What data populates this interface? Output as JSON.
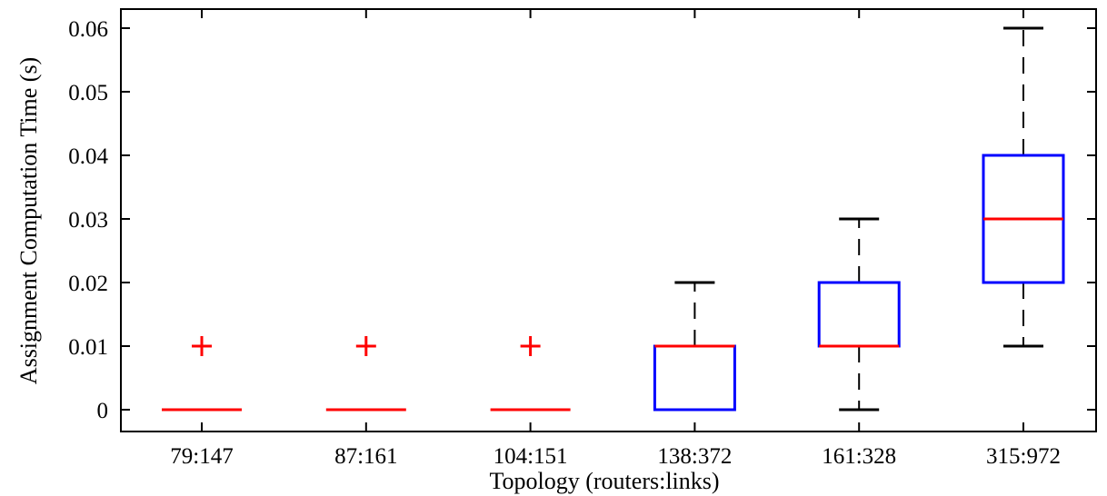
{
  "chart_data": {
    "type": "box",
    "xlabel": "Topology (routers:links)",
    "ylabel": "Assignment Computation Time (s)",
    "ylim": [
      0,
      0.06
    ],
    "yticks": [
      0,
      0.01,
      0.02,
      0.03,
      0.04,
      0.05,
      0.06
    ],
    "ytick_labels": [
      "0",
      "0.01",
      "0.02",
      "0.03",
      "0.04",
      "0.05",
      "0.06"
    ],
    "categories": [
      "79:147",
      "87:161",
      "104:151",
      "138:372",
      "161:328",
      "315:972"
    ],
    "boxes": [
      {
        "category": "79:147",
        "min": 0,
        "q1": 0,
        "median": 0,
        "q3": 0,
        "max": 0,
        "outliers": [
          0.01
        ]
      },
      {
        "category": "87:161",
        "min": 0,
        "q1": 0,
        "median": 0,
        "q3": 0,
        "max": 0,
        "outliers": [
          0.01
        ]
      },
      {
        "category": "104:151",
        "min": 0,
        "q1": 0,
        "median": 0,
        "q3": 0,
        "max": 0,
        "outliers": [
          0.01
        ]
      },
      {
        "category": "138:372",
        "min": 0,
        "q1": 0,
        "median": 0.01,
        "q3": 0.01,
        "max": 0.02,
        "outliers": []
      },
      {
        "category": "161:328",
        "min": 0,
        "q1": 0.01,
        "median": 0.01,
        "q3": 0.02,
        "max": 0.03,
        "outliers": []
      },
      {
        "category": "315:972",
        "min": 0.01,
        "q1": 0.02,
        "median": 0.03,
        "q3": 0.04,
        "max": 0.06,
        "outliers": []
      }
    ],
    "grid": false,
    "colors": {
      "box": "#0000ff",
      "median": "#ff0000",
      "whisker": "#000000",
      "outlier": "#ff0000"
    }
  }
}
